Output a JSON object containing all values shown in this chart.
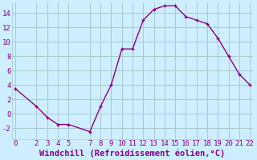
{
  "x": [
    0,
    2,
    3,
    4,
    5,
    7,
    8,
    9,
    10,
    11,
    12,
    13,
    14,
    15,
    16,
    17,
    18,
    19,
    20,
    21,
    22
  ],
  "y": [
    3.5,
    1.0,
    -0.5,
    -1.5,
    -1.5,
    -2.5,
    1.0,
    4.0,
    9.0,
    9.0,
    13.0,
    14.5,
    15.0,
    15.0,
    13.5,
    13.0,
    12.5,
    10.5,
    8.0,
    5.5,
    4.0
  ],
  "line_color": "#8b008b",
  "marker": "+",
  "bg_color": "#cceeff",
  "grid_color": "#aacccc",
  "xlabel": "Windchill (Refroidissement éolien,°C)",
  "xlabel_color": "#8b008b",
  "tick_color": "#8b008b",
  "ylim": [
    -3.5,
    15.5
  ],
  "yticks": [
    -2,
    0,
    2,
    4,
    6,
    8,
    10,
    12,
    14
  ],
  "xticks": [
    0,
    2,
    3,
    4,
    5,
    7,
    8,
    9,
    10,
    11,
    12,
    13,
    14,
    15,
    16,
    17,
    18,
    19,
    20,
    21,
    22
  ],
  "tick_fontsize": 6.5,
  "xlabel_fontsize": 7.5,
  "marker_size": 3,
  "linewidth": 1.0
}
